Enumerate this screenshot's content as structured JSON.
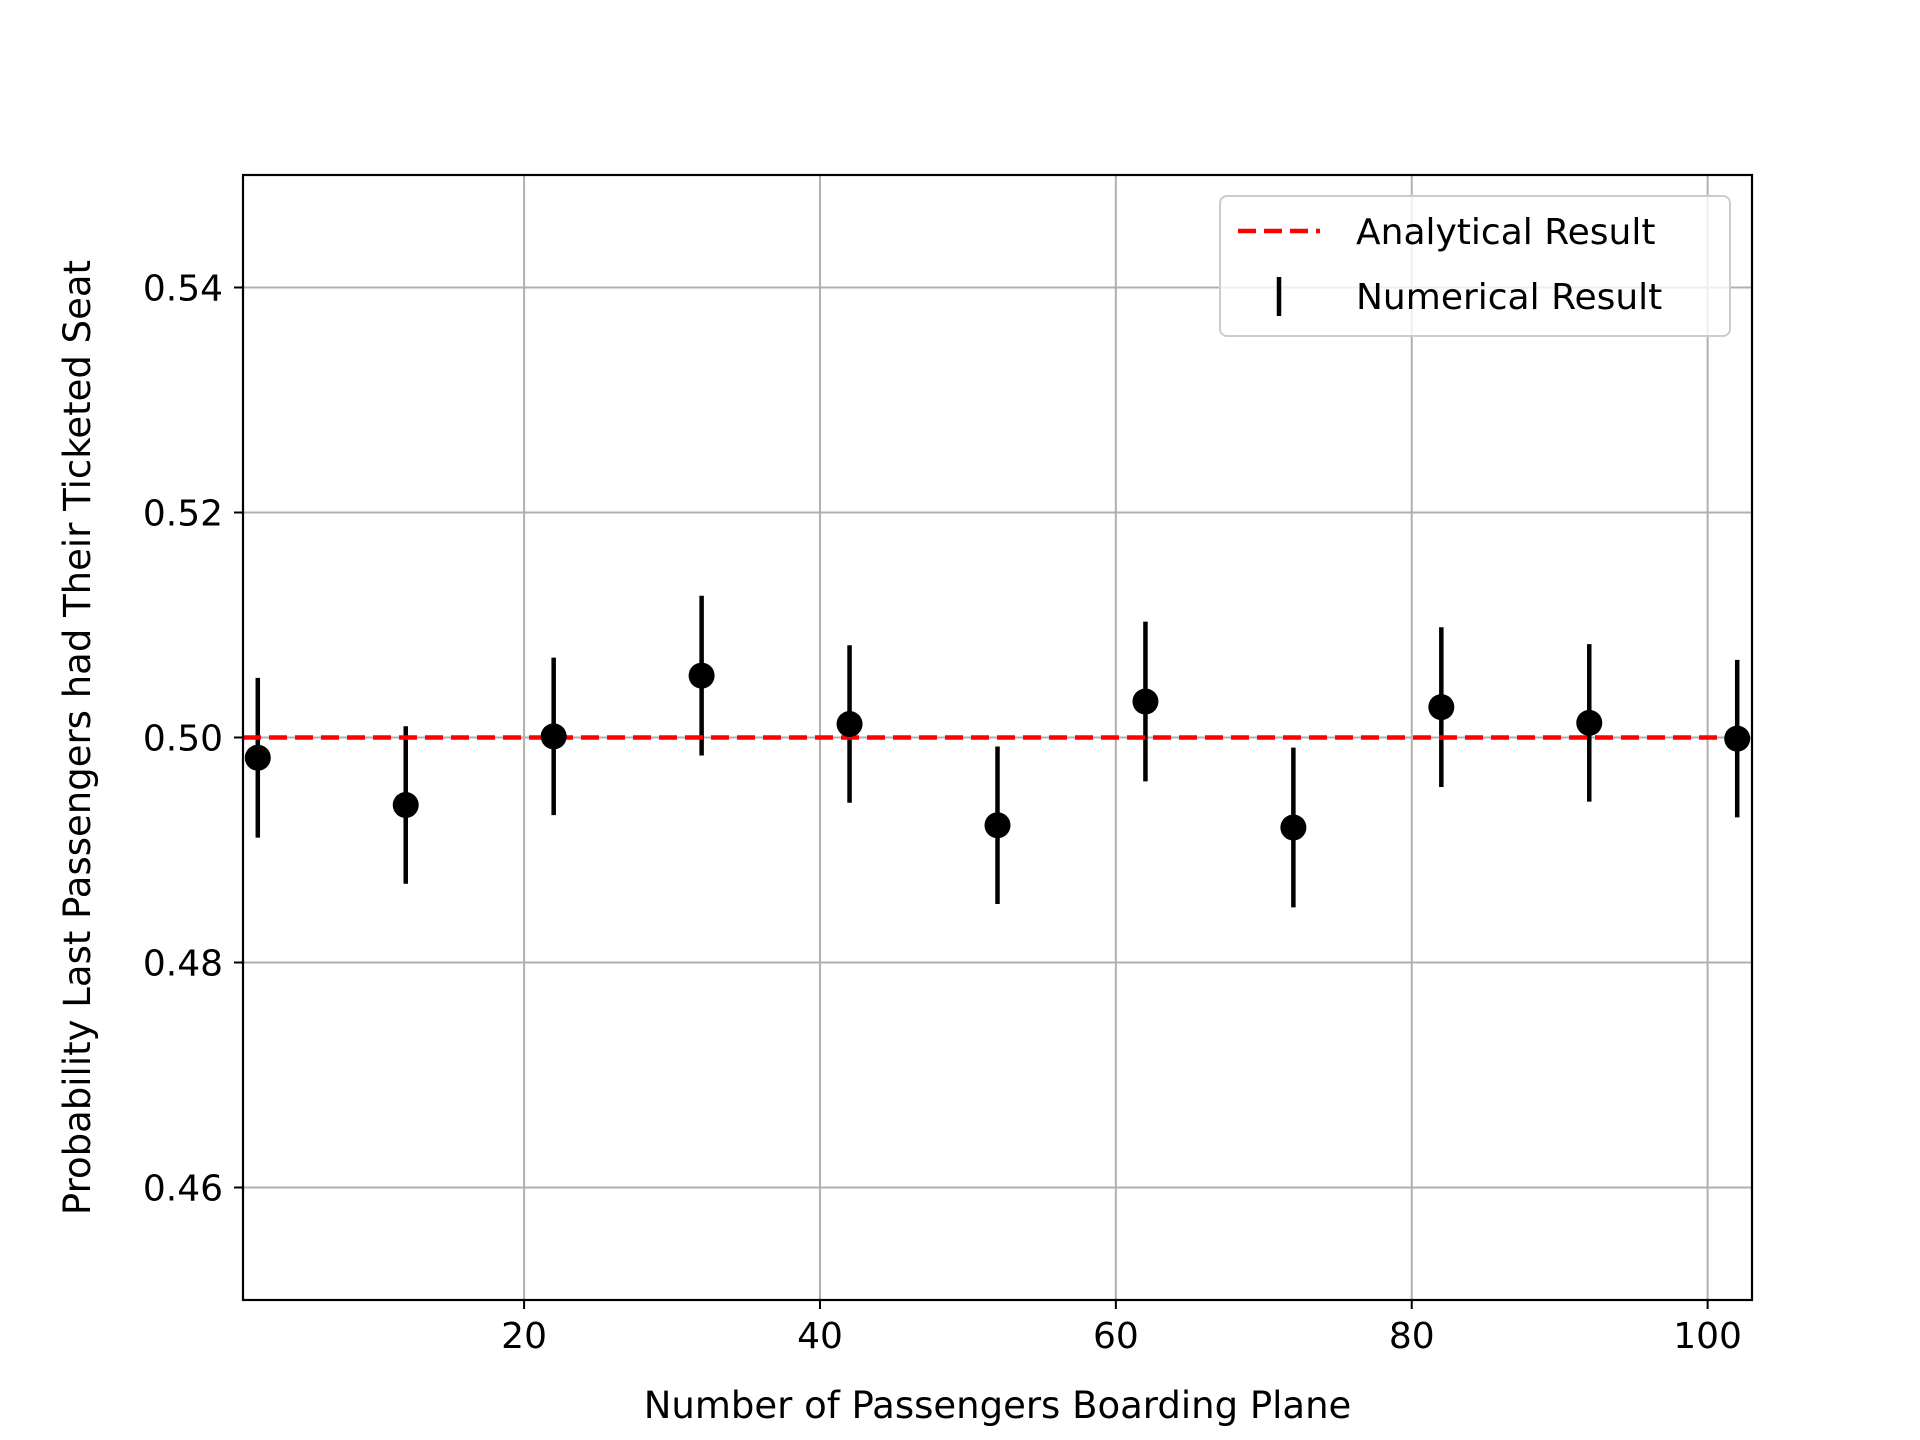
{
  "chart_data": {
    "type": "scatter",
    "xlabel": "Number of Passengers Boarding Plane",
    "ylabel": "Probability Last Passengers had Their Ticketed Seat",
    "xlim": [
      1,
      103
    ],
    "ylim": [
      0.45,
      0.55
    ],
    "x_ticks": [
      20,
      40,
      60,
      80,
      100
    ],
    "x_tick_labels": [
      "20",
      "40",
      "60",
      "80",
      "100"
    ],
    "y_ticks": [
      0.46,
      0.48,
      0.5,
      0.52,
      0.54
    ],
    "y_tick_labels": [
      "0.46",
      "0.48",
      "0.50",
      "0.52",
      "0.54"
    ],
    "grid": true,
    "legend_position": "top-right",
    "series": [
      {
        "name": "Analytical Result",
        "kind": "line",
        "style": "dashed",
        "color": "#ff0000",
        "y": 0.5
      },
      {
        "name": "Numerical Result",
        "kind": "errorbar",
        "color": "#000000",
        "points": [
          {
            "x": 2,
            "y": 0.4982,
            "err": 0.0071
          },
          {
            "x": 12,
            "y": 0.494,
            "err": 0.007
          },
          {
            "x": 22,
            "y": 0.5001,
            "err": 0.007
          },
          {
            "x": 32,
            "y": 0.5055,
            "err": 0.0071
          },
          {
            "x": 42,
            "y": 0.5012,
            "err": 0.007
          },
          {
            "x": 52,
            "y": 0.4922,
            "err": 0.007
          },
          {
            "x": 62,
            "y": 0.5032,
            "err": 0.0071
          },
          {
            "x": 72,
            "y": 0.492,
            "err": 0.0071
          },
          {
            "x": 82,
            "y": 0.5027,
            "err": 0.0071
          },
          {
            "x": 92,
            "y": 0.5013,
            "err": 0.007
          },
          {
            "x": 102,
            "y": 0.4999,
            "err": 0.007
          }
        ]
      }
    ]
  }
}
